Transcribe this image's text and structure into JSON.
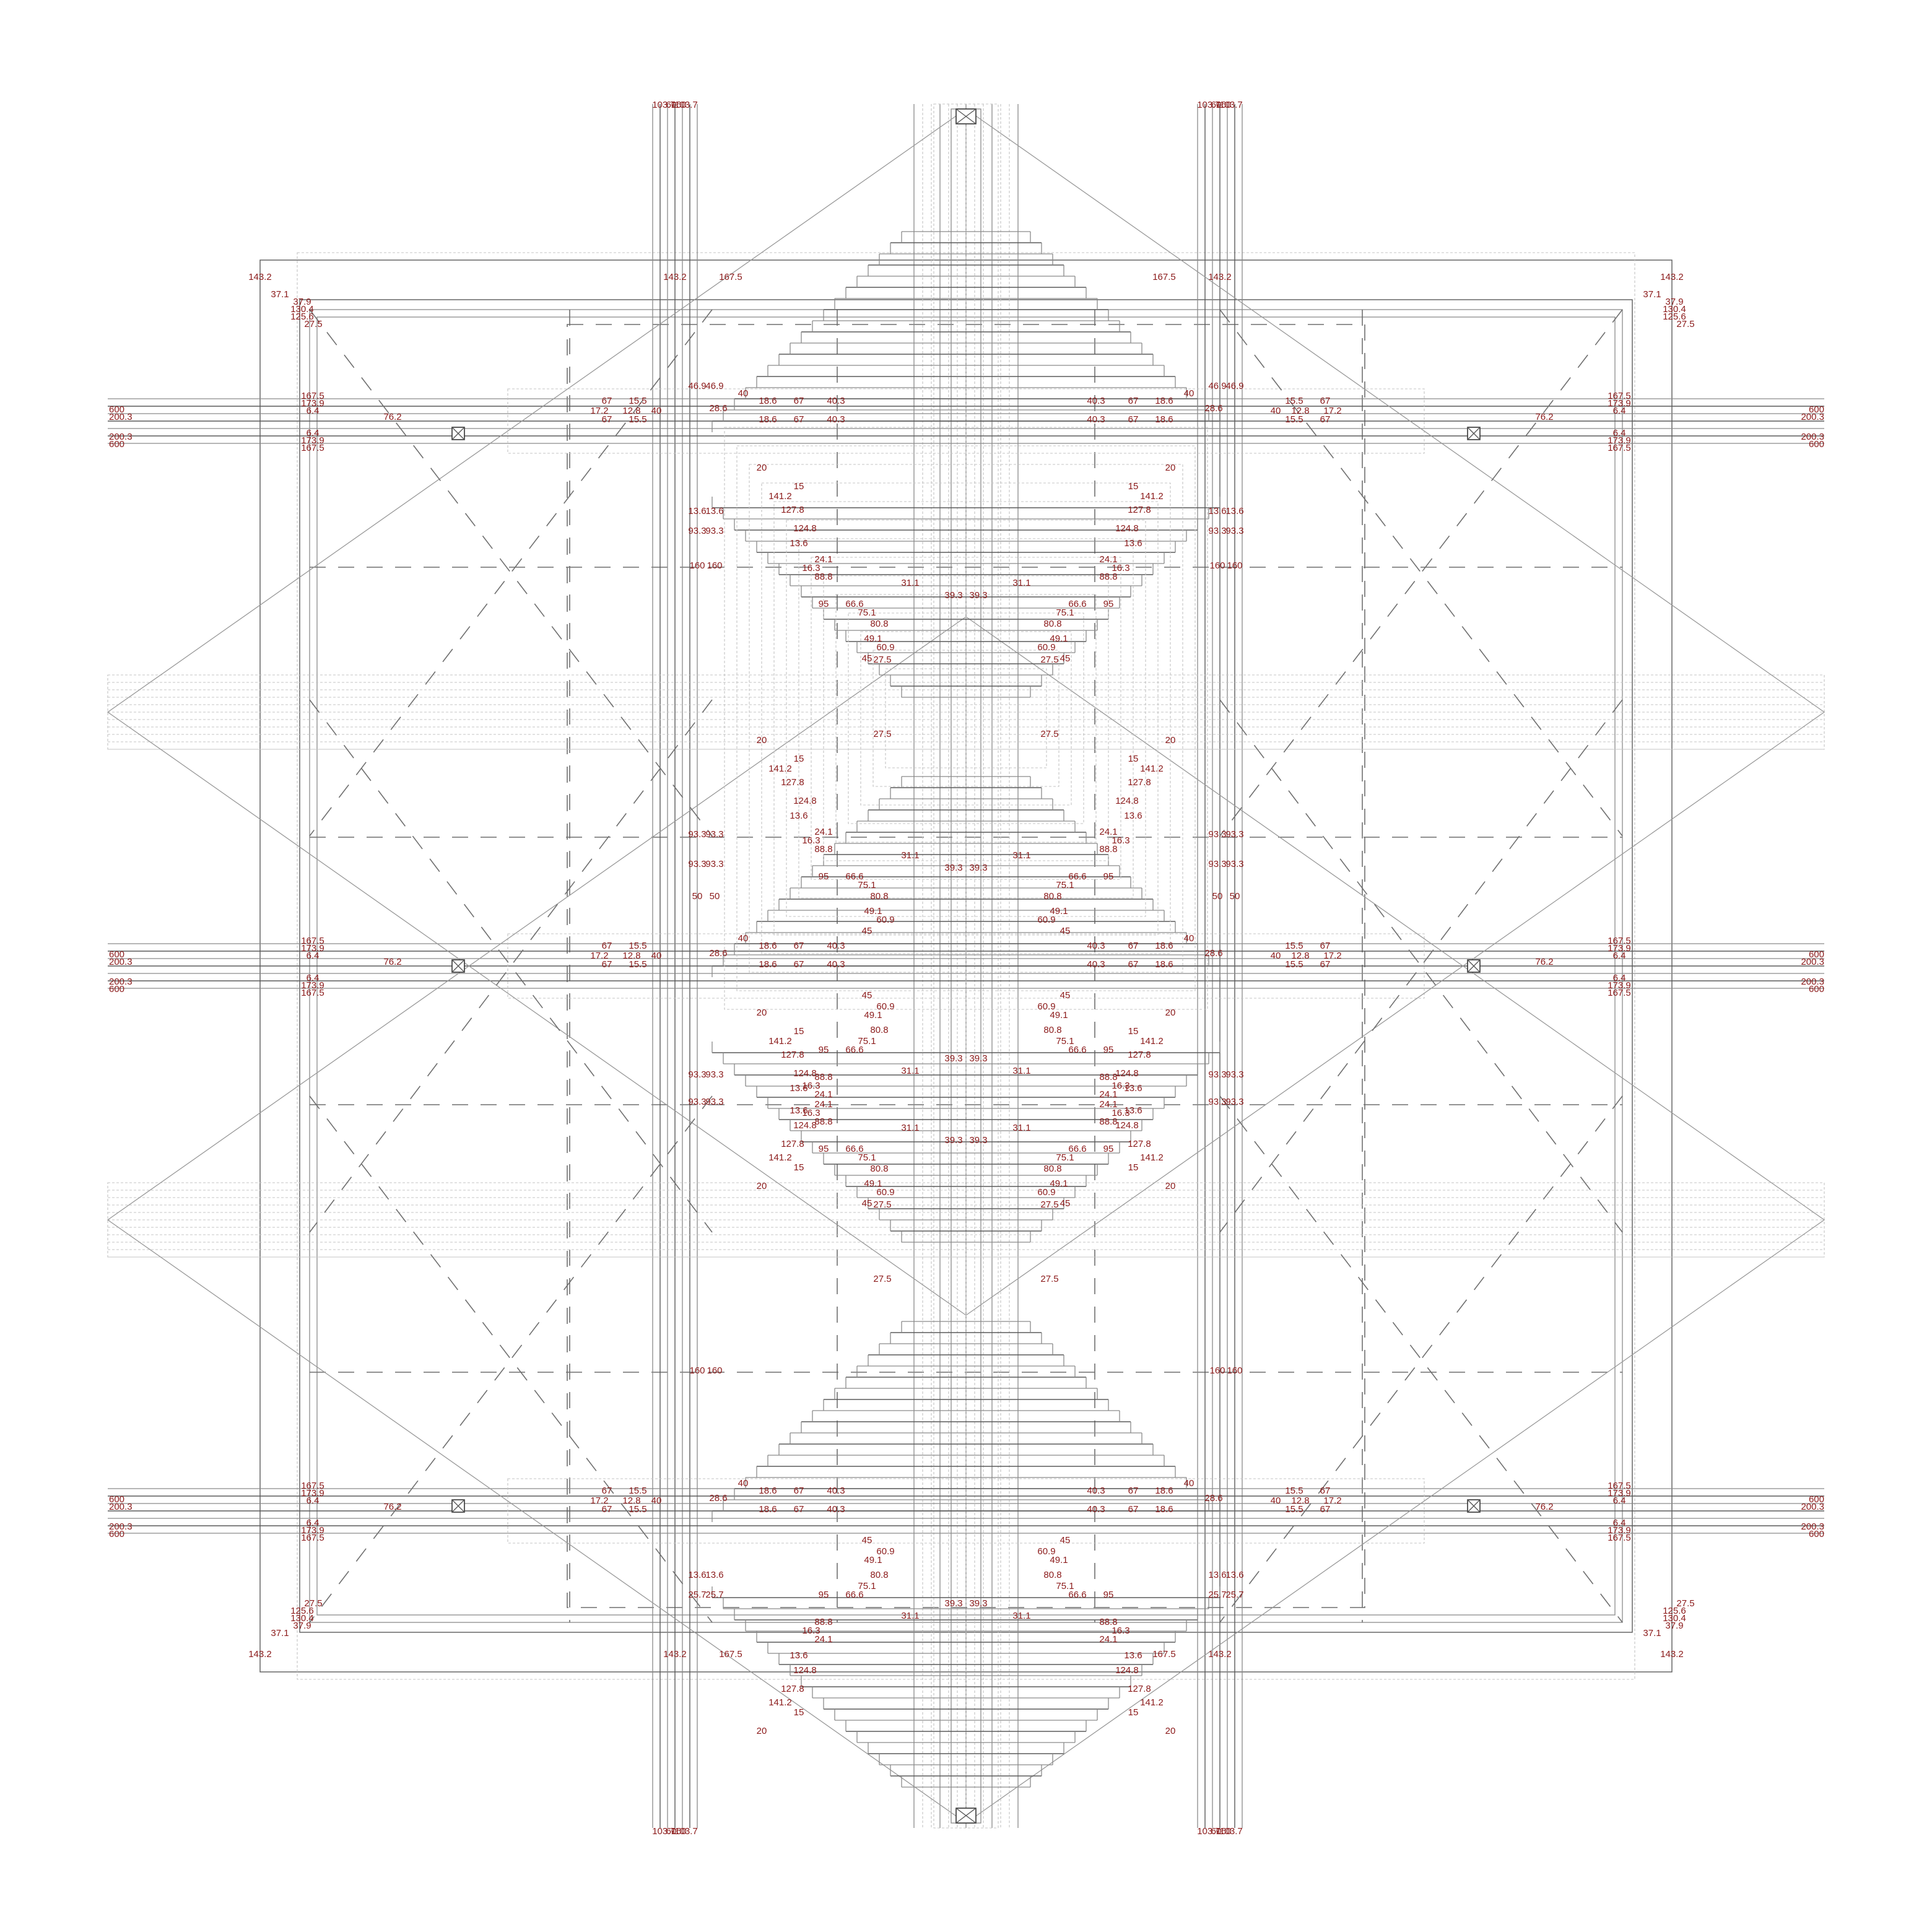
{
  "drawing": {
    "line_colors": {
      "primary": "#8a8a8a",
      "dark": "#5a5a5a",
      "hidden": "#c4c4c4",
      "axis": "#6f6f6f"
    },
    "label_color": "#8b1a1a",
    "labels": {
      "top_edge": [
        "103.7",
        "60",
        "160",
        "103.7"
      ],
      "bottom_edge": [
        "103.7",
        "60",
        "160",
        "103.7"
      ],
      "outer_frame": [
        "143.2",
        "167.5",
        "37.1",
        "37.9",
        "125.6",
        "130.4",
        "27.5"
      ],
      "outer_side": [
        "600",
        "200.3",
        "6.4",
        "173.9",
        "167.5",
        "76.2"
      ],
      "arm_row": [
        "67",
        "15.5",
        "12.8",
        "40",
        "18.6",
        "40.3",
        "28.6",
        "17.2"
      ],
      "mid_columns": [
        "13.6",
        "46.9",
        "25.7",
        "28.5",
        "160",
        "93.3",
        "50"
      ],
      "inner_step": [
        "20",
        "15",
        "141.2",
        "127.8",
        "124.8",
        "13.6",
        "24.1",
        "16.3",
        "88.8",
        "31.1",
        "39.3",
        "95",
        "66.6",
        "75.1",
        "80.8",
        "49.1",
        "60.9",
        "45",
        "27.5"
      ]
    }
  }
}
